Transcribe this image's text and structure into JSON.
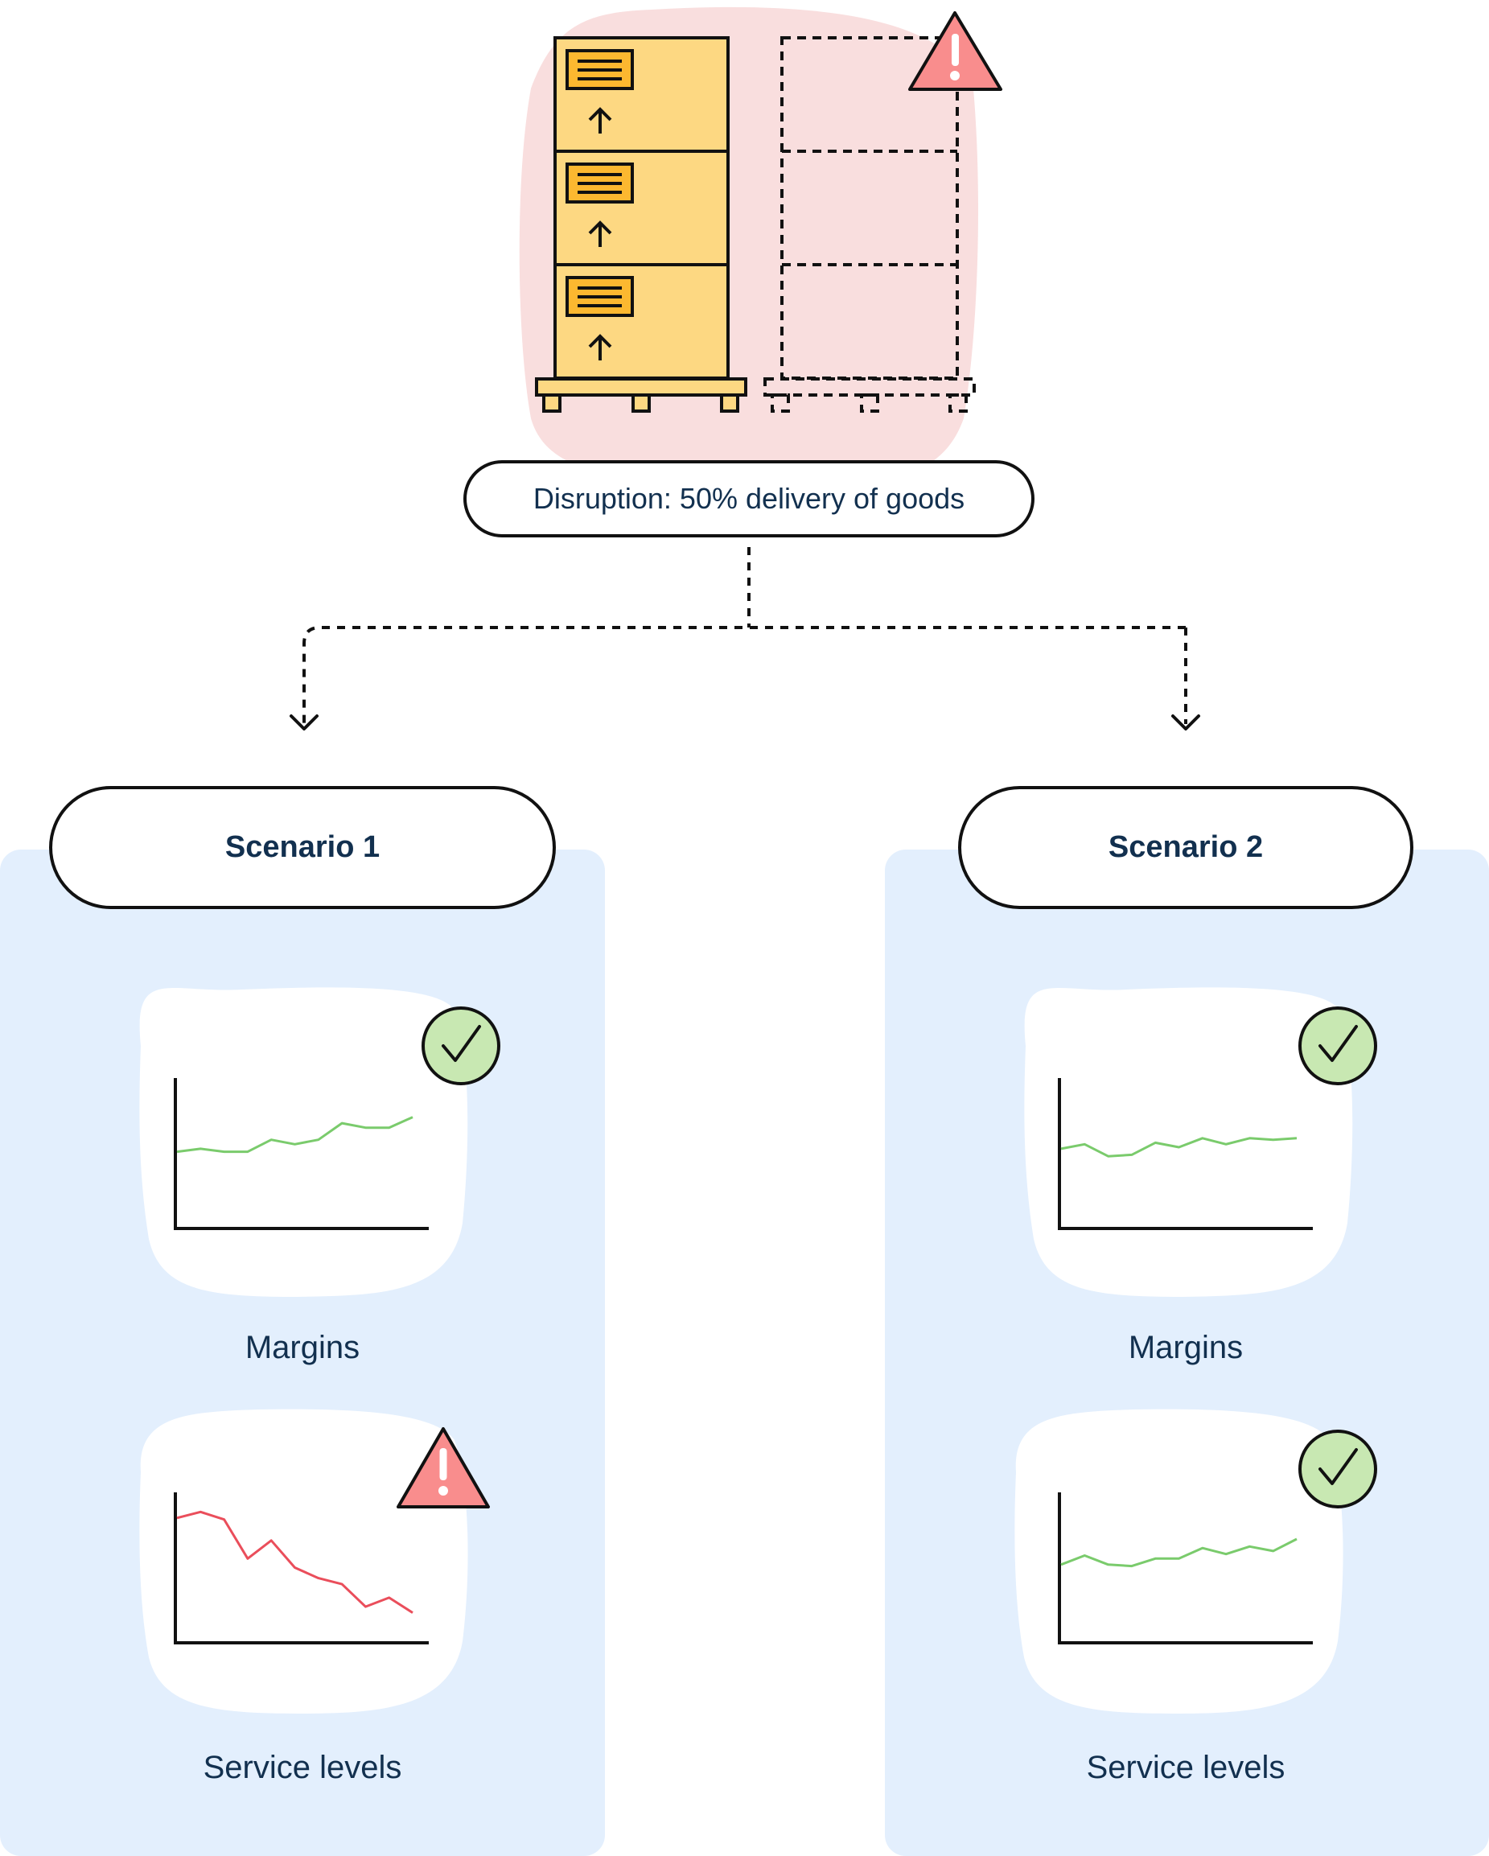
{
  "disruption": {
    "label": "Disruption: 50% delivery of goods",
    "status_icon": "warning-icon"
  },
  "scenarios": [
    {
      "title": "Scenario 1",
      "panels": [
        {
          "label": "Margins",
          "status_icon": "checkmark-icon",
          "trend": "up",
          "line_color": "#7acb6c",
          "line": [
            0.49,
            0.47,
            0.49,
            0.49,
            0.41,
            0.44,
            0.41,
            0.3,
            0.33,
            0.33,
            0.26
          ]
        },
        {
          "label": "Service levels",
          "status_icon": "warning-icon",
          "trend": "down",
          "line_color": "#ea4e5b",
          "line": [
            0.17,
            0.13,
            0.18,
            0.44,
            0.32,
            0.5,
            0.57,
            0.61,
            0.76,
            0.7,
            0.8
          ]
        }
      ]
    },
    {
      "title": "Scenario 2",
      "panels": [
        {
          "label": "Margins",
          "status_icon": "checkmark-icon",
          "trend": "up-flat",
          "line_color": "#7acb6c",
          "line": [
            0.47,
            0.44,
            0.52,
            0.51,
            0.43,
            0.46,
            0.4,
            0.44,
            0.4,
            0.41,
            0.4
          ]
        },
        {
          "label": "Service levels",
          "status_icon": "checkmark-icon",
          "trend": "up",
          "line_color": "#7acb6c",
          "line": [
            0.48,
            0.42,
            0.48,
            0.49,
            0.44,
            0.44,
            0.37,
            0.41,
            0.36,
            0.39,
            0.31
          ]
        }
      ]
    }
  ],
  "colors": {
    "text": "#12304f",
    "pallet_fill": "#fdd882",
    "label_fill": "#fcb830",
    "disruption_bg": "#f9dede",
    "panel_bg": "#e3effd",
    "warning_fill": "#f98d8d",
    "check_fill": "#c8e8b2"
  }
}
